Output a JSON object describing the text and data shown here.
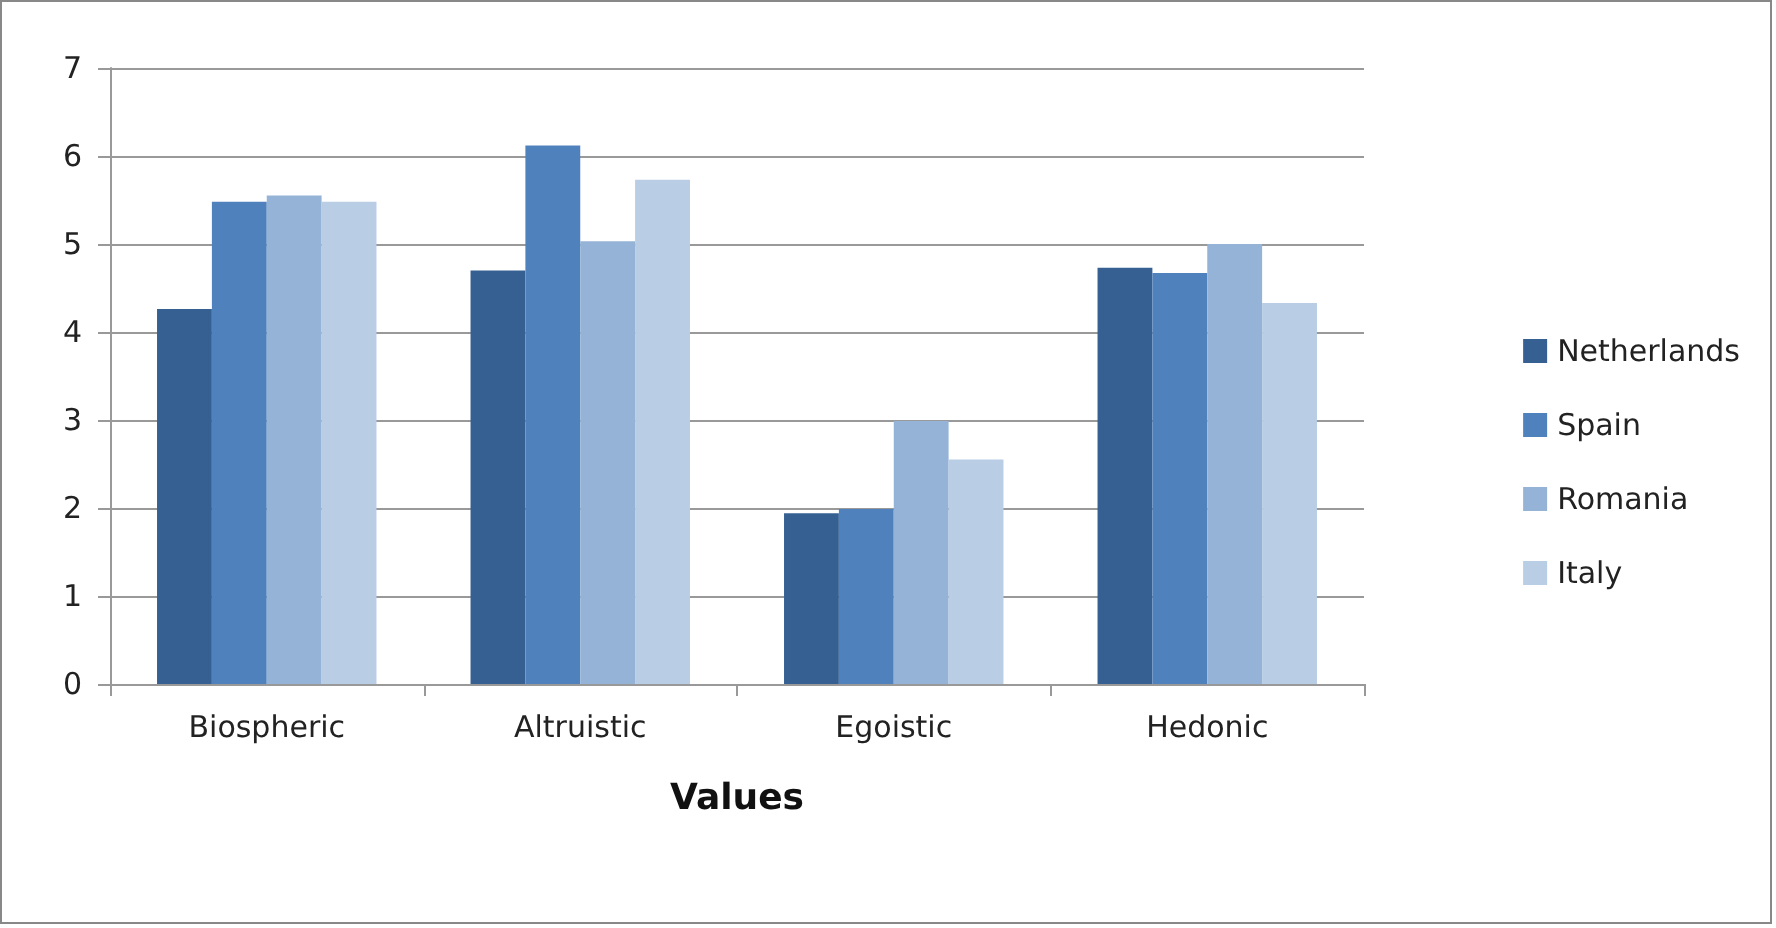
{
  "chart_data": {
    "type": "bar",
    "xlabel": "Values",
    "categories": [
      "Biospheric",
      "Altruistic",
      "Egoistic",
      "Hedonic"
    ],
    "series": [
      {
        "name": "Netherlands",
        "color": "#376092",
        "values": [
          4.26,
          4.7,
          1.94,
          4.73
        ]
      },
      {
        "name": "Spain",
        "color": "#4f81bd",
        "values": [
          5.48,
          6.12,
          1.99,
          4.67
        ]
      },
      {
        "name": "Romania",
        "color": "#95b3d7",
        "values": [
          5.55,
          5.03,
          2.99,
          5.0
        ]
      },
      {
        "name": "Italy",
        "color": "#b9cde5",
        "values": [
          5.48,
          5.73,
          2.55,
          4.33
        ]
      }
    ],
    "ylim": [
      0,
      7
    ],
    "yticks": [
      0,
      1,
      2,
      3,
      4,
      5,
      6,
      7
    ],
    "grid": "y",
    "legend": "right"
  }
}
